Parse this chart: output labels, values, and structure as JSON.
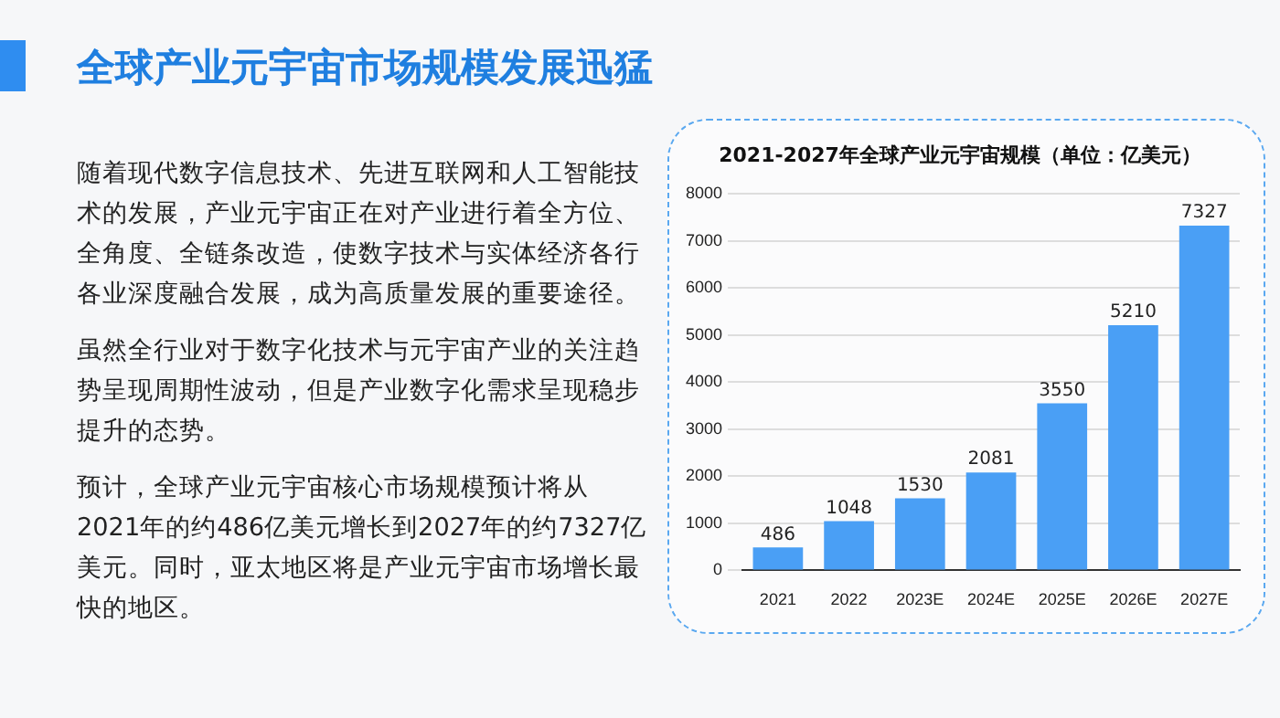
{
  "chart_data": {
    "type": "bar",
    "title": "全球产业元宇宙市场规模发展迅猛",
    "subtitle": "2021-2027年全球产业元宇宙规模（单位：亿美元）",
    "categories": [
      "2021",
      "2022",
      "2023E",
      "2024E",
      "2025E",
      "2026E",
      "2027E"
    ],
    "values": [
      486,
      1048,
      1530,
      2081,
      3550,
      5210,
      7327
    ],
    "color": "#4a9ff5",
    "ylim": [
      0,
      8000
    ],
    "yticks": [
      0,
      1000,
      2000,
      3000,
      4000,
      5000,
      6000,
      7000,
      8000
    ],
    "grid": "y",
    "legend": false,
    "data_labels": true,
    "annotations": [
      "随着现代数字信息技术、先进互联网和人工智能技术的发展，产业元宇宙正在对产业进行着全方位、全角度、全链条改造，使数字技术与实体经济各行各业深度融合发展，成为高质量发展的重要途径。",
      "虽然全行业对于数字化技术与元宇宙产业的关注趋势呈现周期性波动，但是产业数字化需求呈现稳步提升的态势。",
      "预计，全球产业元宇宙核心市场规模预计将从2021年的约486亿美元增长到2027年的约7327亿美元。同时，亚太地区将是产业元宇宙市场增长最快的地区。"
    ]
  }
}
